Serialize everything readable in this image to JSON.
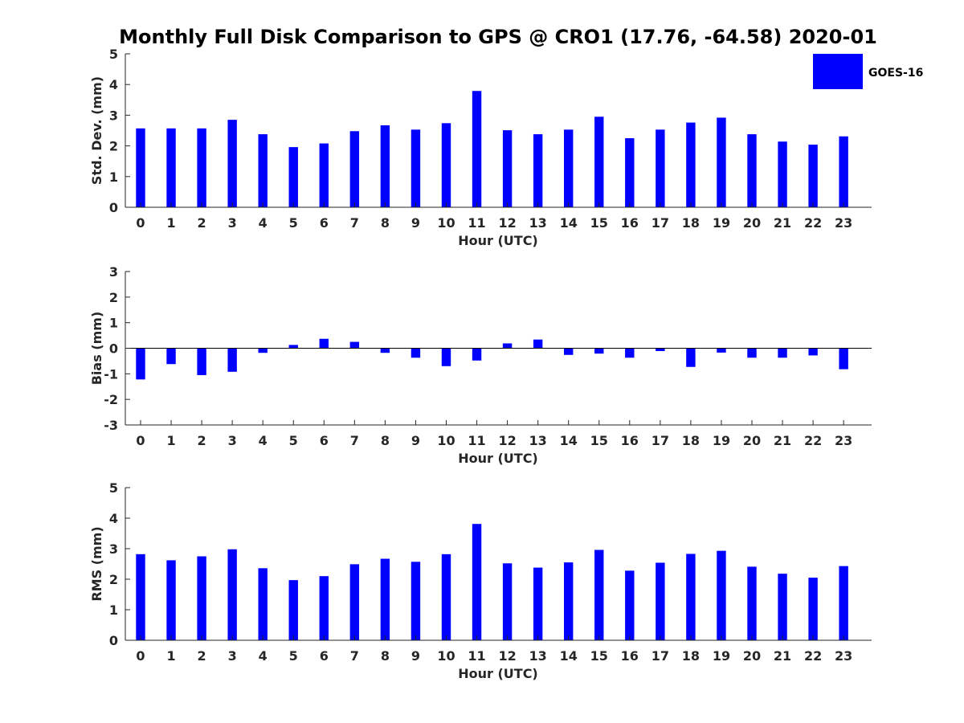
{
  "title": "Monthly Full Disk Comparison to GPS @ CRO1 (17.76, -64.58) 2020-01",
  "legend": {
    "label": "GOES-16",
    "color": "#0000ff"
  },
  "chart_data": [
    {
      "type": "bar",
      "series_name": "GOES-16",
      "xlabel": "Hour (UTC)",
      "ylabel": "Std. Dev. (mm)",
      "ylim": [
        0,
        5
      ],
      "yticks": [
        0,
        1,
        2,
        3,
        4,
        5
      ],
      "categories": [
        "0",
        "1",
        "2",
        "3",
        "4",
        "5",
        "6",
        "7",
        "8",
        "9",
        "10",
        "11",
        "12",
        "13",
        "14",
        "15",
        "16",
        "17",
        "18",
        "19",
        "20",
        "21",
        "22",
        "23"
      ],
      "values": [
        2.57,
        2.57,
        2.57,
        2.85,
        2.38,
        1.96,
        2.08,
        2.48,
        2.67,
        2.53,
        2.74,
        3.79,
        2.51,
        2.38,
        2.53,
        2.95,
        2.25,
        2.53,
        2.76,
        2.92,
        2.38,
        2.14,
        2.04,
        2.31
      ],
      "color": "#0000ff",
      "legend_position": "top-right"
    },
    {
      "type": "bar",
      "xlabel": "Hour (UTC)",
      "ylabel": "Bias (mm)",
      "ylim": [
        -3,
        3
      ],
      "yticks": [
        -3,
        -2,
        -1,
        0,
        1,
        2,
        3
      ],
      "zero_line": true,
      "categories": [
        "0",
        "1",
        "2",
        "3",
        "4",
        "5",
        "6",
        "7",
        "8",
        "9",
        "10",
        "11",
        "12",
        "13",
        "14",
        "15",
        "16",
        "17",
        "18",
        "19",
        "20",
        "21",
        "22",
        "23"
      ],
      "values": [
        -1.22,
        -0.62,
        -1.05,
        -0.92,
        -0.18,
        0.13,
        0.37,
        0.25,
        -0.18,
        -0.37,
        -0.7,
        -0.48,
        0.19,
        0.34,
        -0.26,
        -0.21,
        -0.37,
        -0.11,
        -0.73,
        -0.17,
        -0.37,
        -0.37,
        -0.28,
        -0.82
      ],
      "color": "#0000ff"
    },
    {
      "type": "bar",
      "xlabel": "Hour (UTC)",
      "ylabel": "RMS (mm)",
      "ylim": [
        0,
        5
      ],
      "yticks": [
        0,
        1,
        2,
        3,
        4,
        5
      ],
      "categories": [
        "0",
        "1",
        "2",
        "3",
        "4",
        "5",
        "6",
        "7",
        "8",
        "9",
        "10",
        "11",
        "12",
        "13",
        "14",
        "15",
        "16",
        "17",
        "18",
        "19",
        "20",
        "21",
        "22",
        "23"
      ],
      "values": [
        2.82,
        2.62,
        2.75,
        2.98,
        2.36,
        1.97,
        2.1,
        2.49,
        2.67,
        2.57,
        2.82,
        3.81,
        2.52,
        2.38,
        2.55,
        2.96,
        2.28,
        2.54,
        2.83,
        2.93,
        2.41,
        2.18,
        2.05,
        2.43
      ],
      "color": "#0000ff"
    }
  ]
}
